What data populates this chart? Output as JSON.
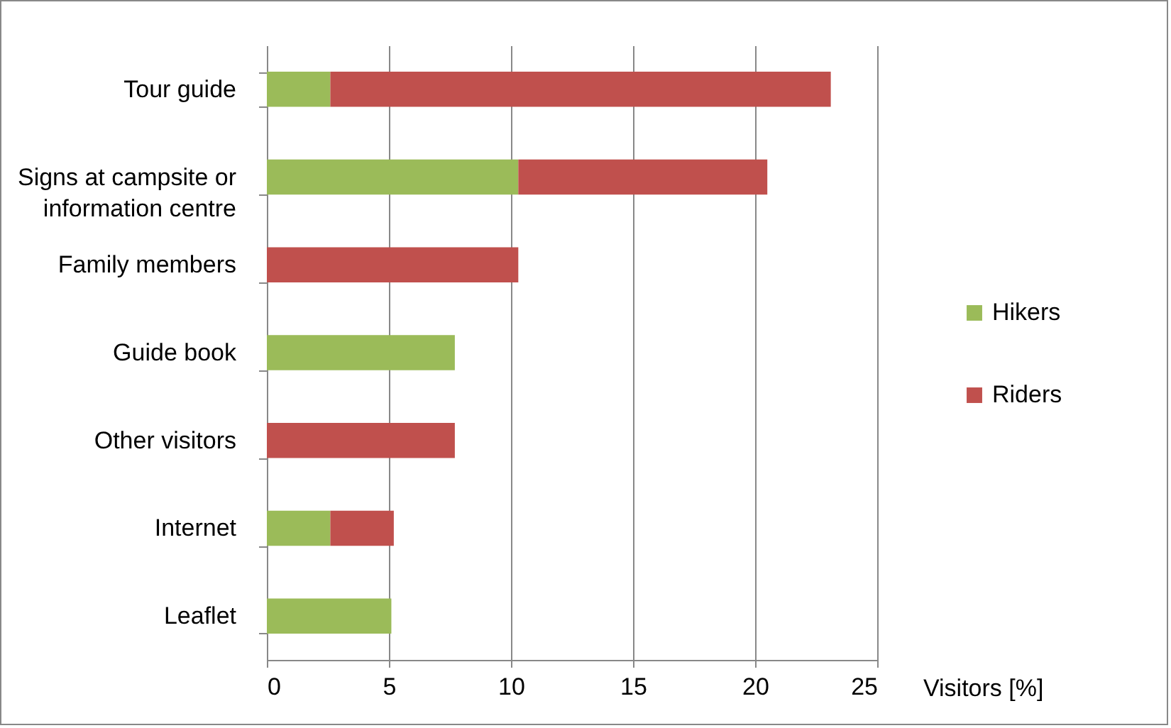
{
  "chart_data": {
    "type": "bar",
    "orientation": "horizontal",
    "stacked": true,
    "xlabel": "Visitors [%]",
    "categories": [
      "Tour guide",
      "Signs at campsite or information centre",
      "Family members",
      "Guide book",
      "Other visitors",
      "Internet",
      "Leaflet"
    ],
    "series": [
      {
        "name": "Hikers",
        "color": "#9bbb59",
        "values": [
          2.6,
          10.3,
          null,
          7.7,
          null,
          2.6,
          5.1
        ]
      },
      {
        "name": "Riders",
        "color": "#c0504d",
        "values": [
          20.5,
          10.2,
          10.3,
          null,
          7.7,
          2.6,
          null
        ]
      }
    ],
    "xlim": [
      0,
      25
    ],
    "xticks": [
      0,
      5,
      10,
      15,
      20,
      25
    ],
    "grid": "x",
    "legend": "right"
  }
}
